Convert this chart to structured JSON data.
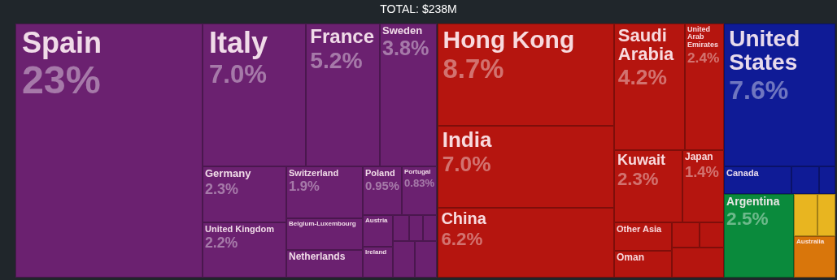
{
  "chart_data": {
    "type": "other",
    "title": "TOTAL: $238M",
    "categories": [
      "Spain",
      "Italy",
      "France",
      "Sweden",
      "Germany",
      "United Kingdom",
      "Switzerland",
      "Belgium-Luxembourg",
      "Netherlands",
      "Poland",
      "Portugal",
      "Austria",
      "Ireland",
      null,
      null,
      null,
      null,
      null,
      "Hong Kong",
      "India",
      "China",
      "Saudi Arabia",
      "United Arab Emirates",
      "Kuwait",
      "Japan",
      "Other Asia",
      "Oman",
      null,
      null,
      null,
      "United States",
      "Canada",
      null,
      null,
      "Argentina",
      null,
      null,
      "Australia"
    ],
    "values": [
      23,
      7.0,
      5.2,
      3.8,
      2.3,
      2.2,
      1.9,
      null,
      null,
      0.95,
      0.83,
      null,
      null,
      null,
      null,
      null,
      null,
      null,
      8.7,
      7.0,
      6.2,
      4.2,
      2.4,
      2.3,
      1.4,
      null,
      null,
      null,
      null,
      null,
      7.6,
      null,
      null,
      null,
      2.5,
      null,
      null,
      null
    ],
    "value_labels": [
      "23%",
      "7.0%",
      "5.2%",
      "3.8%",
      "2.3%",
      "2.2%",
      "1.9%",
      null,
      null,
      "0.95%",
      "0.83%",
      null,
      null,
      null,
      null,
      null,
      null,
      null,
      "8.7%",
      "7.0%",
      "6.2%",
      "4.2%",
      "2.4%",
      "2.3%",
      "1.4%",
      null,
      null,
      null,
      null,
      null,
      "7.6%",
      null,
      null,
      null,
      "2.5%",
      null,
      null,
      null
    ],
    "colors": [
      "#6b2170",
      "#6b2170",
      "#6b2170",
      "#6b2170",
      "#6b2170",
      "#6b2170",
      "#6b2170",
      "#6b2170",
      "#6b2170",
      "#6b2170",
      "#6b2170",
      "#6b2170",
      "#6b2170",
      "#6b2170",
      "#6b2170",
      "#6b2170",
      "#6b2170",
      "#6b2170",
      "#b5150f",
      "#b5150f",
      "#b5150f",
      "#b5150f",
      "#b5150f",
      "#b5150f",
      "#b5150f",
      "#b5150f",
      "#b5150f",
      "#b5150f",
      "#b5150f",
      "#b5150f",
      "#0f1b96",
      "#0f1b96",
      "#0f1b96",
      "#0f1b96",
      "#0a8a3c",
      "#e8b520",
      "#e8b520",
      "#d9760b"
    ]
  }
}
